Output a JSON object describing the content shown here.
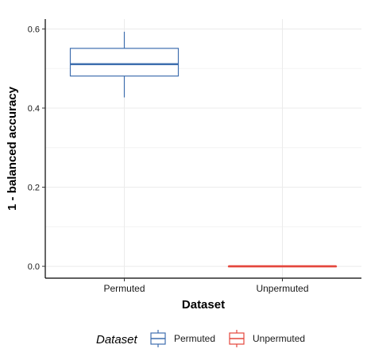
{
  "chart_data": {
    "type": "boxplot",
    "xlabel": "Dataset",
    "ylabel": "1 - balanced accuracy",
    "ylim": [
      -0.03,
      0.625
    ],
    "yticks": [
      0.0,
      0.2,
      0.4,
      0.6
    ],
    "ytick_labels": [
      "0.0",
      "0.2",
      "0.4",
      "0.6"
    ],
    "categories": [
      "Permuted",
      "Unpermuted"
    ],
    "grid": true,
    "legend": {
      "title": "Dataset",
      "position": "bottom",
      "entries": [
        "Permuted",
        "Unpermuted"
      ]
    },
    "series": [
      {
        "name": "Permuted",
        "color": "#3f6faf",
        "whisker_low": 0.427,
        "q1": 0.481,
        "median": 0.511,
        "q3": 0.551,
        "whisker_high": 0.593
      },
      {
        "name": "Unpermuted",
        "color": "#e4463c",
        "whisker_low": 0.0,
        "q1": 0.0,
        "median": 0.0,
        "q3": 0.0,
        "whisker_high": 0.0
      }
    ]
  }
}
